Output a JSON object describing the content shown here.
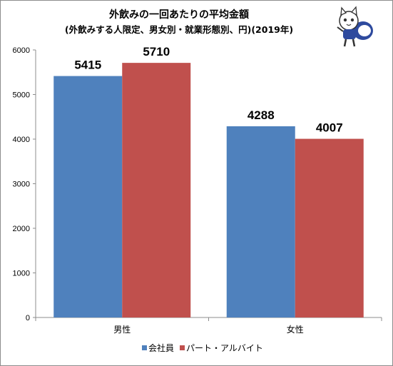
{
  "chart_data": {
    "type": "bar",
    "title": "外飲みの一回あたりの平均金額",
    "subtitle": "(外飲みする人限定、男女別・就業形態別、円)(2019年)",
    "categories": [
      "男性",
      "女性"
    ],
    "series": [
      {
        "name": "会社員",
        "color": "#4f81bd",
        "values": [
          5415,
          4288
        ]
      },
      {
        "name": "パート・アルバイト",
        "color": "#c0504d",
        "values": [
          5710,
          4007
        ]
      }
    ],
    "ylim": [
      0,
      6000
    ],
    "yticks": [
      0,
      1000,
      2000,
      3000,
      4000,
      5000,
      6000
    ],
    "xlabel": "",
    "ylabel": "",
    "grid": false,
    "legend_position": "bottom"
  },
  "mascot": {
    "icon": "cat-mascot-icon"
  }
}
